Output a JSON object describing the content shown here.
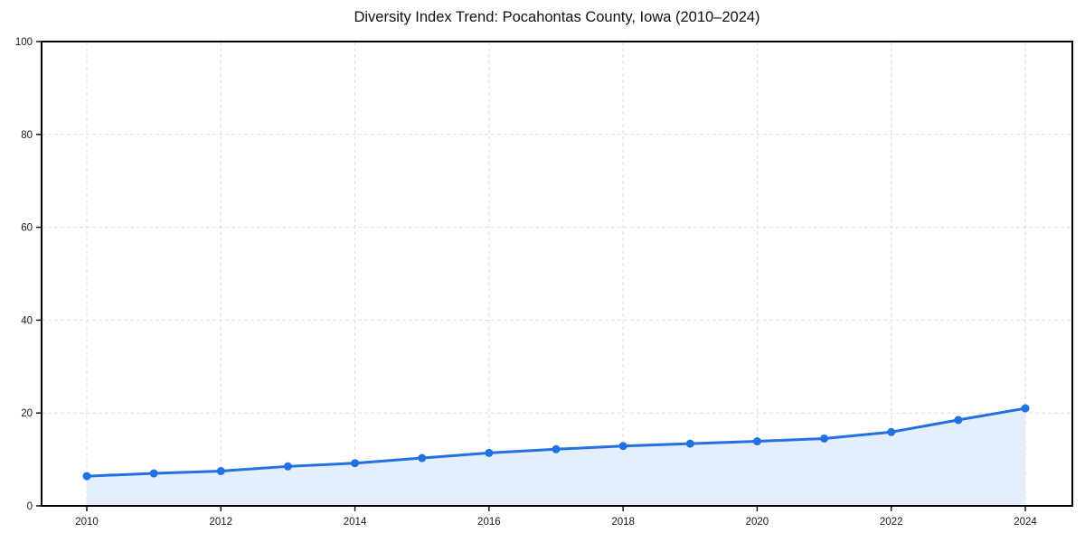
{
  "page": {
    "background": "#ffffff"
  },
  "chart_data": {
    "type": "line",
    "title": "Diversity Index Trend: Pocahontas County, Iowa (2010–2024)",
    "x": [
      2010,
      2011,
      2012,
      2013,
      2014,
      2015,
      2016,
      2017,
      2018,
      2019,
      2020,
      2021,
      2022,
      2023,
      2024
    ],
    "values": [
      6.4,
      7.0,
      7.5,
      8.5,
      9.2,
      10.3,
      11.4,
      12.2,
      12.9,
      13.4,
      13.9,
      14.5,
      15.9,
      18.5,
      21.0
    ],
    "xlabel": "",
    "ylabel": "",
    "ylim": [
      0,
      100
    ],
    "y_ticks": [
      0,
      20,
      40,
      60,
      80,
      100
    ],
    "x_ticks": [
      2010,
      2012,
      2014,
      2016,
      2018,
      2020,
      2022,
      2024
    ],
    "grid": true,
    "grid_style": "dashed",
    "legend": false,
    "marker": "circle",
    "area_from_baseline": true,
    "line_color": "#2271e3",
    "marker_color": "#2271e3",
    "fill_color": "#e4eefc",
    "grid_color": "#dddddd",
    "axis_color": "#000000",
    "tick_label_color": "#1a1a1a",
    "title_color": "#111111"
  }
}
